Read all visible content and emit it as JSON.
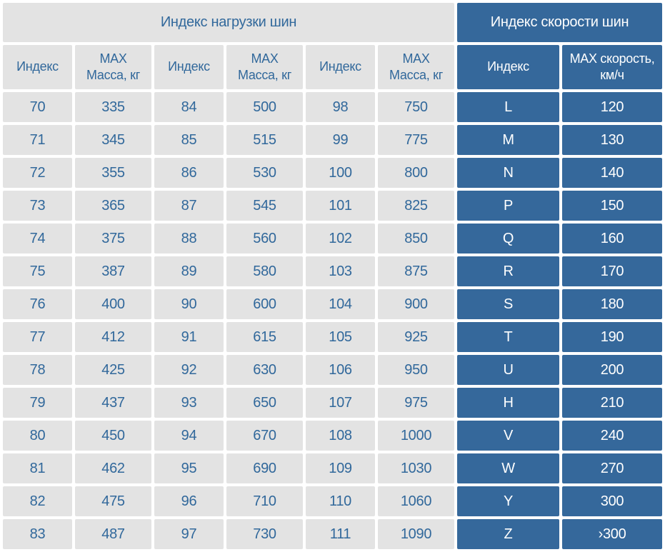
{
  "page": {
    "background": "#ffffff"
  },
  "colors": {
    "cell_gray": "#e3e3e3",
    "cell_blue": "#35689b",
    "text_blue": "#31689b",
    "text_white": "#ffffff",
    "gap_white": "#ffffff"
  },
  "chart_data": {
    "type": "table",
    "sections": [
      {
        "title": "Индекс нагрузки шин",
        "columns": [
          "Индекс",
          "MAX Масса, кг"
        ],
        "pairs": [
          [
            70,
            335
          ],
          [
            71,
            345
          ],
          [
            72,
            355
          ],
          [
            73,
            365
          ],
          [
            74,
            375
          ],
          [
            75,
            387
          ],
          [
            76,
            400
          ],
          [
            77,
            412
          ],
          [
            78,
            425
          ],
          [
            79,
            437
          ],
          [
            80,
            450
          ],
          [
            81,
            462
          ],
          [
            82,
            475
          ],
          [
            83,
            487
          ],
          [
            84,
            500
          ],
          [
            85,
            515
          ],
          [
            86,
            530
          ],
          [
            87,
            545
          ],
          [
            88,
            560
          ],
          [
            89,
            580
          ],
          [
            90,
            600
          ],
          [
            91,
            615
          ],
          [
            92,
            630
          ],
          [
            93,
            650
          ],
          [
            94,
            670
          ],
          [
            95,
            690
          ],
          [
            96,
            710
          ],
          [
            97,
            730
          ],
          [
            98,
            750
          ],
          [
            99,
            775
          ],
          [
            100,
            800
          ],
          [
            101,
            825
          ],
          [
            102,
            850
          ],
          [
            103,
            875
          ],
          [
            104,
            900
          ],
          [
            105,
            925
          ],
          [
            106,
            950
          ],
          [
            107,
            975
          ],
          [
            108,
            1000
          ],
          [
            109,
            1030
          ],
          [
            110,
            1060
          ],
          [
            111,
            1090
          ]
        ]
      },
      {
        "title": "Индекс скорости шин",
        "columns": [
          "Индекс",
          "MAX скорость, км/ч"
        ],
        "pairs": [
          [
            "L",
            120
          ],
          [
            "M",
            130
          ],
          [
            "N",
            140
          ],
          [
            "P",
            150
          ],
          [
            "Q",
            160
          ],
          [
            "R",
            170
          ],
          [
            "S",
            180
          ],
          [
            "T",
            190
          ],
          [
            "U",
            200
          ],
          [
            "H",
            210
          ],
          [
            "V",
            240
          ],
          [
            "W",
            270
          ],
          [
            "Y",
            300
          ],
          [
            "Z",
            "›300"
          ]
        ]
      }
    ]
  }
}
